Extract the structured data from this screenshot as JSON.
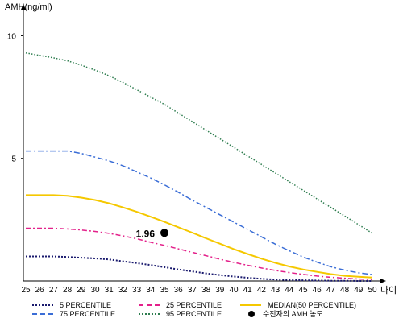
{
  "chart_data": {
    "type": "line",
    "ylabel": "AMH(ng/ml)",
    "xlabel": "나이",
    "x": [
      25,
      26,
      27,
      28,
      29,
      30,
      31,
      32,
      33,
      34,
      35,
      36,
      37,
      38,
      39,
      40,
      41,
      42,
      43,
      44,
      45,
      46,
      47,
      48,
      49,
      50
    ],
    "xlim": [
      25,
      50
    ],
    "ylim": [
      0,
      11
    ],
    "yticks": [
      5,
      10
    ],
    "grid": false,
    "legend_position": "bottom",
    "series": [
      {
        "name": "5 PERCENTILE",
        "color": "#1a1a6e",
        "dash": "2,2",
        "width": 2,
        "values": [
          1.0,
          1.0,
          1.0,
          0.98,
          0.95,
          0.92,
          0.88,
          0.8,
          0.73,
          0.65,
          0.56,
          0.47,
          0.39,
          0.31,
          0.24,
          0.18,
          0.13,
          0.09,
          0.06,
          0.04,
          0.03,
          0.02,
          0.01,
          0.01,
          0.0,
          0.0
        ]
      },
      {
        "name": "25 PERCENTILE",
        "color": "#e3208a",
        "dash": "6,3,2,3",
        "width": 1.5,
        "values": [
          2.15,
          2.15,
          2.15,
          2.12,
          2.08,
          2.02,
          1.94,
          1.84,
          1.72,
          1.58,
          1.45,
          1.31,
          1.17,
          1.03,
          0.89,
          0.76,
          0.64,
          0.53,
          0.43,
          0.34,
          0.27,
          0.2,
          0.15,
          0.11,
          0.08,
          0.06
        ]
      },
      {
        "name": "MEDIAN(50 PERCENTILE)",
        "color": "#f5c800",
        "dash": "",
        "width": 2,
        "values": [
          3.5,
          3.5,
          3.5,
          3.47,
          3.4,
          3.3,
          3.17,
          3.0,
          2.82,
          2.62,
          2.41,
          2.19,
          1.97,
          1.74,
          1.52,
          1.3,
          1.1,
          0.91,
          0.74,
          0.59,
          0.47,
          0.37,
          0.28,
          0.21,
          0.17,
          0.14
        ]
      },
      {
        "name": "75 PERCENTILE",
        "color": "#3a6dd6",
        "dash": "7,3,2,3",
        "width": 1.5,
        "values": [
          5.3,
          5.3,
          5.3,
          5.3,
          5.2,
          5.05,
          4.9,
          4.7,
          4.45,
          4.2,
          3.92,
          3.62,
          3.3,
          3.0,
          2.7,
          2.4,
          2.1,
          1.8,
          1.5,
          1.23,
          0.98,
          0.77,
          0.58,
          0.44,
          0.33,
          0.26
        ]
      },
      {
        "name": "95 PERCENTILE",
        "color": "#2e7d4f",
        "dash": "1.5,2",
        "width": 1.5,
        "values": [
          9.3,
          9.2,
          9.1,
          8.98,
          8.8,
          8.6,
          8.37,
          8.1,
          7.8,
          7.5,
          7.2,
          6.85,
          6.5,
          6.15,
          5.8,
          5.45,
          5.1,
          4.75,
          4.4,
          4.05,
          3.7,
          3.35,
          3.0,
          2.65,
          2.3,
          1.94
        ]
      }
    ],
    "points": [
      {
        "name": "수진자의 AMH 농도",
        "x": 35,
        "y": 1.96,
        "label": "1.96",
        "color": "#000000"
      }
    ]
  }
}
